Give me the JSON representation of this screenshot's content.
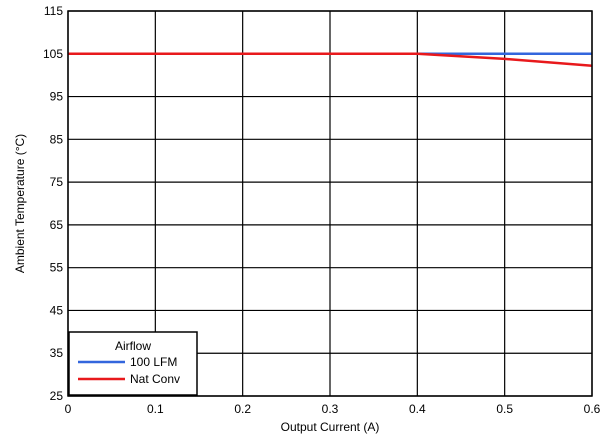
{
  "chart_data": {
    "type": "line",
    "xlabel": "Output Current (A)",
    "ylabel": "Ambient Temperature (°C)",
    "xlim": [
      0,
      0.6
    ],
    "ylim": [
      25,
      115
    ],
    "x_ticks": [
      0,
      0.1,
      0.2,
      0.3,
      0.4,
      0.5,
      0.6
    ],
    "x_tick_labels": [
      "0",
      "0.1",
      "0.2",
      "0.3",
      "0.4",
      "0.5",
      "0.6"
    ],
    "y_ticks": [
      25,
      35,
      45,
      55,
      65,
      75,
      85,
      95,
      105,
      115
    ],
    "y_tick_labels": [
      "25",
      "35",
      "45",
      "55",
      "65",
      "75",
      "85",
      "95",
      "105",
      "115"
    ],
    "grid": true,
    "legend": {
      "title": "Airflow",
      "placement": "bottom-left"
    },
    "series": [
      {
        "name": "100 LFM",
        "color": "#3366dd",
        "x": [
          0,
          0.1,
          0.2,
          0.3,
          0.4,
          0.5,
          0.6
        ],
        "y": [
          105,
          105,
          105,
          105,
          105,
          105,
          105
        ]
      },
      {
        "name": "Nat Conv",
        "color": "#e8191c",
        "x": [
          0,
          0.1,
          0.2,
          0.3,
          0.4,
          0.5,
          0.6
        ],
        "y": [
          105,
          105,
          105,
          105,
          105,
          103.8,
          102.2
        ]
      }
    ]
  }
}
